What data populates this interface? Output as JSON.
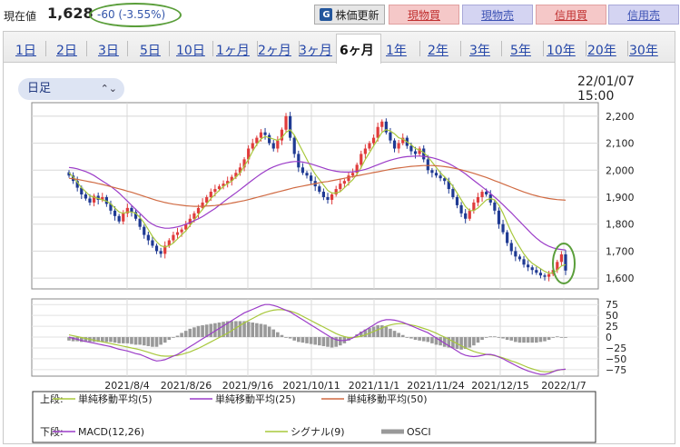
{
  "header": {
    "price_label": "現在値",
    "price_value": "1,628",
    "price_change": "-60 (-3.55%)",
    "update_button": "株価更新",
    "update_icon": "refresh-icon",
    "trade_buttons": [
      {
        "label": "現物買",
        "kind": "buy"
      },
      {
        "label": "現物売",
        "kind": "sell"
      },
      {
        "label": "信用買",
        "kind": "buy"
      },
      {
        "label": "信用売",
        "kind": "sell"
      }
    ]
  },
  "period_tabs": [
    "1日",
    "2日",
    "3日",
    "5日",
    "10日",
    "1ヶ月",
    "2ヶ月",
    "3ヶ月",
    "6ヶ月",
    "1年",
    "2年",
    "3年",
    "5年",
    "10年",
    "20年",
    "30年"
  ],
  "active_tab": "6ヶ月",
  "interval_select": {
    "value": "日足"
  },
  "timestamp": "22/01/07 15:00",
  "colors": {
    "up": "#e03c3c",
    "down": "#1f3a93",
    "ma5": "#a8c83c",
    "ma25": "#9b3cc8",
    "ma50": "#d06a42",
    "macd": "#9b3cc8",
    "signal": "#a8c83c",
    "osci": "#999999",
    "highlight": "#5a9e3a"
  },
  "chart_data": [
    {
      "type": "candlestick",
      "title": "",
      "x_tick_labels": [
        "2021/8/4",
        "2021/8/26",
        "2021/9/16",
        "2021/10/11",
        "2021/11/1",
        "2021/11/24",
        "2021/12/15",
        "2022/1/7"
      ],
      "y_tick_labels": [
        "2,200",
        "2,100",
        "2,000",
        "1,900",
        "1,800",
        "1,700",
        "1,600"
      ],
      "ylim": [
        1560,
        2250
      ],
      "grid": true,
      "close_series": [
        1980,
        1960,
        1935,
        1910,
        1895,
        1880,
        1905,
        1890,
        1900,
        1875,
        1850,
        1830,
        1810,
        1840,
        1860,
        1845,
        1820,
        1790,
        1760,
        1740,
        1720,
        1700,
        1690,
        1720,
        1740,
        1760,
        1770,
        1780,
        1800,
        1820,
        1840,
        1860,
        1880,
        1900,
        1920,
        1930,
        1940,
        1950,
        1960,
        1975,
        1990,
        2010,
        2040,
        2080,
        2100,
        2120,
        2140,
        2130,
        2100,
        2080,
        2110,
        2150,
        2200,
        2120,
        2060,
        2010,
        1990,
        1980,
        1960,
        1940,
        1920,
        1900,
        1890,
        1910,
        1930,
        1950,
        1960,
        1980,
        1990,
        2020,
        2060,
        2080,
        2100,
        2120,
        2160,
        2180,
        2140,
        2110,
        2080,
        2100,
        2120,
        2090,
        2070,
        2060,
        2080,
        2040,
        2000,
        1990,
        1980,
        1970,
        1960,
        1930,
        1900,
        1870,
        1840,
        1820,
        1850,
        1880,
        1900,
        1920,
        1910,
        1880,
        1850,
        1800,
        1770,
        1730,
        1700,
        1680,
        1670,
        1650,
        1640,
        1630,
        1620,
        1610,
        1605,
        1615,
        1630,
        1660,
        1688,
        1628
      ],
      "ma_series": [
        {
          "name": "単純移動平均(5)",
          "values": [
            1990,
            1975,
            1955,
            1935,
            1920,
            1905,
            1900,
            1895,
            1890,
            1885,
            1875,
            1860,
            1845,
            1840,
            1845,
            1845,
            1840,
            1825,
            1805,
            1780,
            1755,
            1735,
            1720,
            1715,
            1720,
            1730,
            1745,
            1760,
            1775,
            1795,
            1815,
            1835,
            1855,
            1875,
            1895,
            1910,
            1925,
            1940,
            1950,
            1960,
            1975,
            1990,
            2015,
            2040,
            2070,
            2095,
            2115,
            2125,
            2120,
            2115,
            2110,
            2120,
            2140,
            2150,
            2130,
            2100,
            2070,
            2040,
            2010,
            1985,
            1965,
            1945,
            1925,
            1915,
            1915,
            1920,
            1935,
            1950,
            1965,
            1985,
            2010,
            2040,
            2065,
            2090,
            2115,
            2140,
            2150,
            2145,
            2135,
            2120,
            2115,
            2105,
            2095,
            2080,
            2075,
            2065,
            2050,
            2030,
            2010,
            1990,
            1975,
            1960,
            1940,
            1915,
            1890,
            1865,
            1850,
            1850,
            1860,
            1875,
            1890,
            1895,
            1890,
            1870,
            1840,
            1805,
            1770,
            1740,
            1715,
            1690,
            1670,
            1655,
            1645,
            1635,
            1625,
            1618,
            1620,
            1630,
            1645,
            1650
          ]
        },
        {
          "name": "単純移動平均(25)",
          "values": [
            2010,
            2008,
            2005,
            2000,
            1995,
            1988,
            1980,
            1970,
            1960,
            1950,
            1940,
            1928,
            1915,
            1900,
            1885,
            1870,
            1855,
            1840,
            1825,
            1810,
            1800,
            1792,
            1788,
            1785,
            1785,
            1787,
            1790,
            1794,
            1800,
            1806,
            1813,
            1820,
            1828,
            1838,
            1848,
            1858,
            1870,
            1882,
            1894,
            1905,
            1916,
            1928,
            1940,
            1952,
            1964,
            1975,
            1986,
            1996,
            2005,
            2012,
            2018,
            2023,
            2027,
            2030,
            2032,
            2032,
            2030,
            2027,
            2023,
            2018,
            2013,
            2008,
            2003,
            1999,
            1996,
            1994,
            1993,
            1993,
            1994,
            1996,
            1999,
            2003,
            2008,
            2014,
            2020,
            2026,
            2032,
            2037,
            2041,
            2045,
            2048,
            2050,
            2051,
            2052,
            2052,
            2051,
            2049,
            2046,
            2042,
            2037,
            2031,
            2024,
            2016,
            2007,
            1997,
            1986,
            1974,
            1962,
            1950,
            1938,
            1926,
            1913,
            1900,
            1886,
            1872,
            1857,
            1842,
            1826,
            1810,
            1794,
            1778,
            1762,
            1748,
            1736,
            1726,
            1718,
            1712,
            1708,
            1706,
            1704
          ]
        },
        {
          "name": "単純移動平均(50)",
          "values": [
            1970,
            1968,
            1966,
            1963,
            1960,
            1957,
            1954,
            1950,
            1947,
            1943,
            1939,
            1935,
            1931,
            1927,
            1922,
            1918,
            1913,
            1908,
            1903,
            1898,
            1893,
            1888,
            1884,
            1880,
            1877,
            1874,
            1872,
            1870,
            1868,
            1867,
            1866,
            1866,
            1866,
            1867,
            1868,
            1869,
            1871,
            1873,
            1875,
            1878,
            1881,
            1884,
            1887,
            1891,
            1895,
            1899,
            1903,
            1907,
            1911,
            1915,
            1919,
            1923,
            1927,
            1931,
            1935,
            1938,
            1941,
            1944,
            1947,
            1950,
            1953,
            1956,
            1958,
            1961,
            1964,
            1967,
            1970,
            1973,
            1976,
            1979,
            1982,
            1985,
            1988,
            1991,
            1994,
            1997,
            2000,
            2003,
            2006,
            2008,
            2010,
            2012,
            2014,
            2015,
            2016,
            2017,
            2017,
            2017,
            2016,
            2015,
            2013,
            2011,
            2008,
            2005,
            2001,
            1997,
            1993,
            1988,
            1983,
            1978,
            1973,
            1967,
            1961,
            1955,
            1949,
            1943,
            1937,
            1931,
            1925,
            1919,
            1914,
            1909,
            1905,
            1901,
            1898,
            1895,
            1893,
            1891,
            1890,
            1889
          ]
        }
      ]
    },
    {
      "type": "line",
      "title": "",
      "y_tick_labels": [
        "75",
        "50",
        "25",
        "0",
        "−25",
        "−50",
        "−75"
      ],
      "ylim": [
        -90,
        88
      ],
      "series": [
        {
          "name": "MACD(12,26)",
          "values": [
            0,
            -3,
            -5,
            -8,
            -10,
            -12,
            -14,
            -16,
            -18,
            -20,
            -22,
            -25,
            -28,
            -30,
            -32,
            -35,
            -38,
            -40,
            -44,
            -48,
            -52,
            -55,
            -54,
            -52,
            -48,
            -44,
            -40,
            -34,
            -28,
            -22,
            -16,
            -10,
            -4,
            2,
            8,
            14,
            20,
            26,
            32,
            38,
            44,
            50,
            56,
            60,
            64,
            68,
            72,
            75,
            75,
            73,
            70,
            66,
            62,
            58,
            52,
            46,
            40,
            34,
            28,
            22,
            16,
            10,
            4,
            -2,
            -6,
            -8,
            -8,
            -6,
            -2,
            4,
            10,
            16,
            22,
            28,
            34,
            38,
            40,
            40,
            39,
            37,
            34,
            30,
            26,
            22,
            18,
            14,
            10,
            4,
            -2,
            -8,
            -14,
            -20,
            -26,
            -32,
            -38,
            -42,
            -44,
            -45,
            -44,
            -42,
            -40,
            -40,
            -42,
            -46,
            -50,
            -55,
            -60,
            -65,
            -70,
            -74,
            -78,
            -81,
            -84,
            -86,
            -86,
            -84,
            -80,
            -76,
            -75,
            -74
          ]
        },
        {
          "name": "シグナル(9)",
          "values": [
            5,
            3,
            1,
            -1,
            -3,
            -5,
            -7,
            -9,
            -11,
            -13,
            -15,
            -17,
            -19,
            -21,
            -23,
            -25,
            -27,
            -29,
            -32,
            -35,
            -38,
            -41,
            -43,
            -44,
            -44,
            -43,
            -42,
            -40,
            -37,
            -34,
            -30,
            -26,
            -21,
            -16,
            -11,
            -6,
            -1,
            4,
            9,
            15,
            21,
            27,
            33,
            38,
            43,
            48,
            53,
            57,
            60,
            62,
            63,
            63,
            62,
            60,
            57,
            53,
            48,
            43,
            38,
            33,
            28,
            23,
            18,
            13,
            8,
            4,
            1,
            -1,
            -1,
            0,
            2,
            5,
            9,
            13,
            17,
            21,
            25,
            28,
            30,
            31,
            31,
            30,
            28,
            26,
            23,
            20,
            17,
            13,
            9,
            4,
            0,
            -5,
            -10,
            -15,
            -20,
            -25,
            -29,
            -33,
            -36,
            -38,
            -40,
            -41,
            -43,
            -45,
            -48,
            -51,
            -55,
            -58,
            -62,
            -66,
            -70,
            -73,
            -76,
            -79,
            -80,
            -80,
            -79,
            -77,
            -75,
            -74
          ]
        },
        {
          "name": "OSCI",
          "values": []
        }
      ]
    }
  ],
  "legend": {
    "upper_label": "上段:",
    "lower_label": "下段:",
    "upper_items": [
      "単純移動平均(5)",
      "単純移動平均(25)",
      "単純移動平均(50)"
    ],
    "lower_items": [
      "MACD(12,26)",
      "シグナル(9)",
      "OSCI"
    ]
  }
}
